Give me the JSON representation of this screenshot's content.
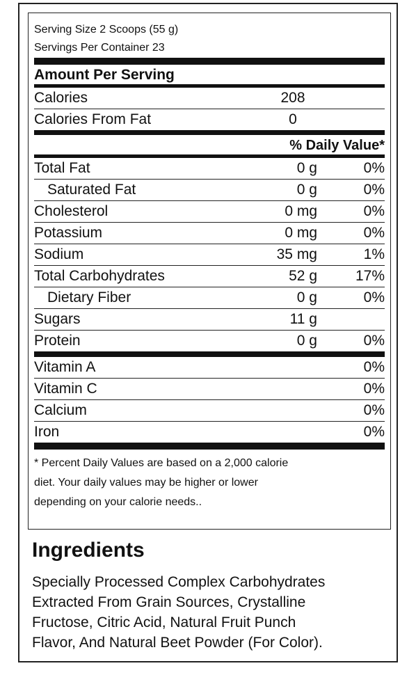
{
  "serving": {
    "size": "Serving Size 2 Scoops (55 g)",
    "per_container": "Servings Per Container 23"
  },
  "headers": {
    "amount_per_serving": "Amount Per Serving",
    "daily_value": "% Daily Value*"
  },
  "calories": [
    {
      "name": "Calories",
      "amount": "208"
    },
    {
      "name": "Calories From Fat",
      "amount": "0"
    }
  ],
  "nutrients": [
    {
      "name": "Total Fat",
      "amount": "0 g",
      "dv": "0%"
    },
    {
      "name": "Saturated Fat",
      "amount": "0 g",
      "dv": "0%"
    },
    {
      "name": "Cholesterol",
      "amount": "0 mg",
      "dv": "0%"
    },
    {
      "name": "Potassium",
      "amount": "0 mg",
      "dv": "0%"
    },
    {
      "name": "Sodium",
      "amount": "35 mg",
      "dv": "1%"
    },
    {
      "name": "Total Carbohydrates",
      "amount": "52 g",
      "dv": "17%"
    },
    {
      "name": "Dietary Fiber",
      "amount": "0 g",
      "dv": "0%"
    },
    {
      "name": "Sugars",
      "amount": "11 g",
      "dv": ""
    },
    {
      "name": "Protein",
      "amount": "0 g",
      "dv": "0%"
    }
  ],
  "vitamins": [
    {
      "name": "Vitamin A",
      "dv": "0%"
    },
    {
      "name": "Vitamin C",
      "dv": "0%"
    },
    {
      "name": "Calcium",
      "dv": "0%"
    },
    {
      "name": "Iron",
      "dv": "0%"
    }
  ],
  "footnote": {
    "line1": "* Percent Daily Values are based on a 2,000 calorie",
    "line2": "diet. Your daily values may be higher or lower",
    "line3": "depending on your calorie needs.."
  },
  "ingredients": {
    "title": "Ingredients",
    "line1": "Specially Processed Complex Carbohydrates",
    "line2": "Extracted From Grain Sources, Crystalline",
    "line3": "Fructose, Citric Acid, Natural Fruit Punch",
    "line4": "Flavor, And Natural Beet Powder (For Color)."
  }
}
